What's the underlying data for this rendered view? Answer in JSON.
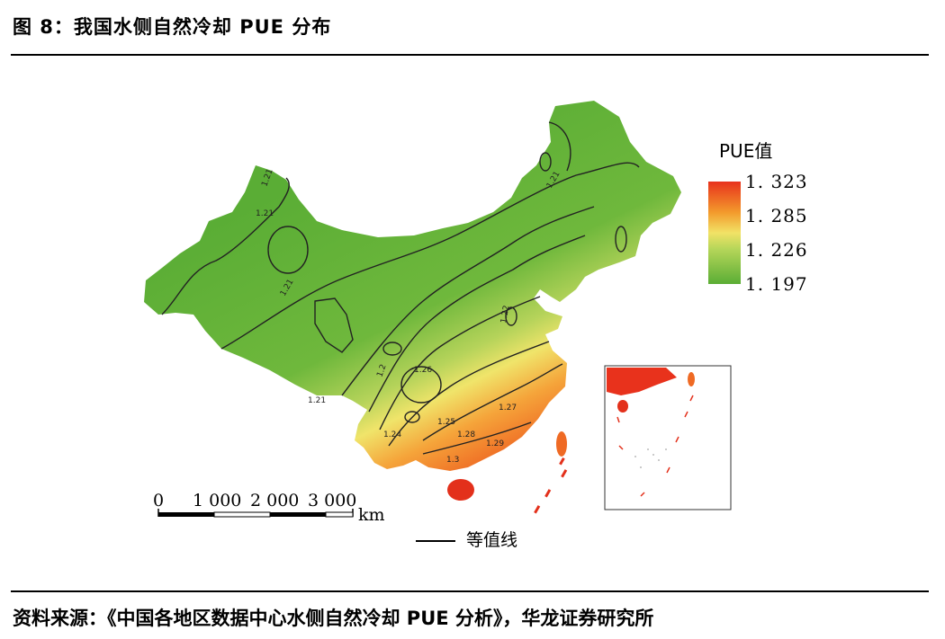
{
  "figure": {
    "title": "图 8：我国水侧自然冷却 PUE 分布",
    "source": "资料来源：《中国各地区数据中心水侧自然冷却 PUE 分析》，华龙证券研究所"
  },
  "legend": {
    "title": "PUE值",
    "values": [
      "1. 323",
      "1. 285",
      "1. 226",
      "1. 197"
    ],
    "colors": [
      "#e8321c",
      "#f39a2c",
      "#f2e266",
      "#5aad35"
    ]
  },
  "scale_bar": {
    "labels": [
      "0",
      "1 000",
      "2 000",
      "3 000"
    ],
    "unit": "km"
  },
  "isoline_legend": {
    "label": "等值线"
  },
  "contour_labels": [
    "1.2",
    "1.21",
    "1.21",
    "1.21",
    "1.21",
    "1.21",
    "1.22",
    "1.24",
    "1.25",
    "1.26",
    "1.27",
    "1.28",
    "1.29",
    "1.3"
  ]
}
